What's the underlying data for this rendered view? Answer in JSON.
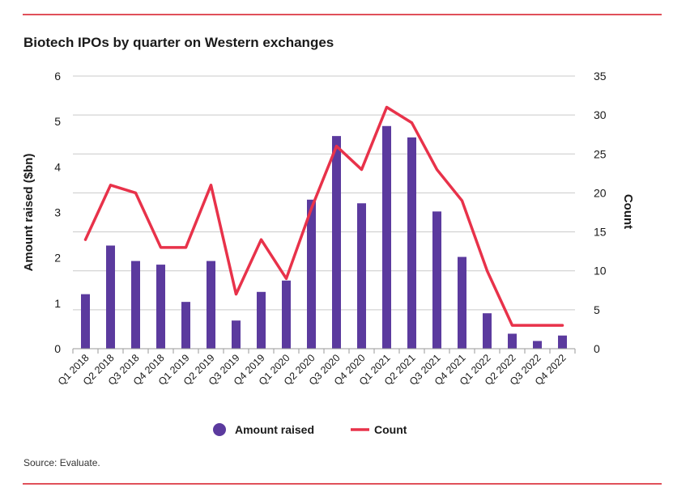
{
  "chart_data": {
    "type": "bar+line",
    "title": "Biotech IPOs by quarter on Western exchanges",
    "source": "Source: Evaluate.",
    "categories": [
      "Q1 2018",
      "Q2 2018",
      "Q3 2018",
      "Q4 2018",
      "Q1 2019",
      "Q2 2019",
      "Q3 2019",
      "Q4 2019",
      "Q1 2020",
      "Q2 2020",
      "Q3 2020",
      "Q4 2020",
      "Q1 2021",
      "Q2 2021",
      "Q3 2021",
      "Q4 2021",
      "Q1 2022",
      "Q2 2022",
      "Q3 2022",
      "Q4 2022"
    ],
    "series": [
      {
        "name": "Amount raised",
        "type": "bar",
        "axis": "left",
        "color": "#5b3a9e",
        "values": [
          1.2,
          2.27,
          1.93,
          1.85,
          1.03,
          1.93,
          0.62,
          1.25,
          1.5,
          3.28,
          4.68,
          3.2,
          4.9,
          4.65,
          3.02,
          2.02,
          0.78,
          0.33,
          0.17,
          0.29
        ]
      },
      {
        "name": "Count",
        "type": "line",
        "axis": "right",
        "color": "#e8324a",
        "values": [
          14,
          21,
          20,
          13,
          13,
          21,
          7,
          14,
          9,
          18,
          26,
          23,
          31,
          29,
          23,
          19,
          10,
          3,
          3,
          3
        ]
      }
    ],
    "ylabel_left": "Amount raised ($bn)",
    "ylabel_right": "Count",
    "ylim_left": [
      0,
      6
    ],
    "ylim_right": [
      0,
      35
    ],
    "yticks_left": [
      "0",
      "1",
      "2",
      "3",
      "4",
      "5",
      "6"
    ],
    "yticks_right": [
      "0",
      "5",
      "10",
      "15",
      "20",
      "25",
      "30",
      "35"
    ],
    "grid": true,
    "legend_position": "bottom"
  }
}
